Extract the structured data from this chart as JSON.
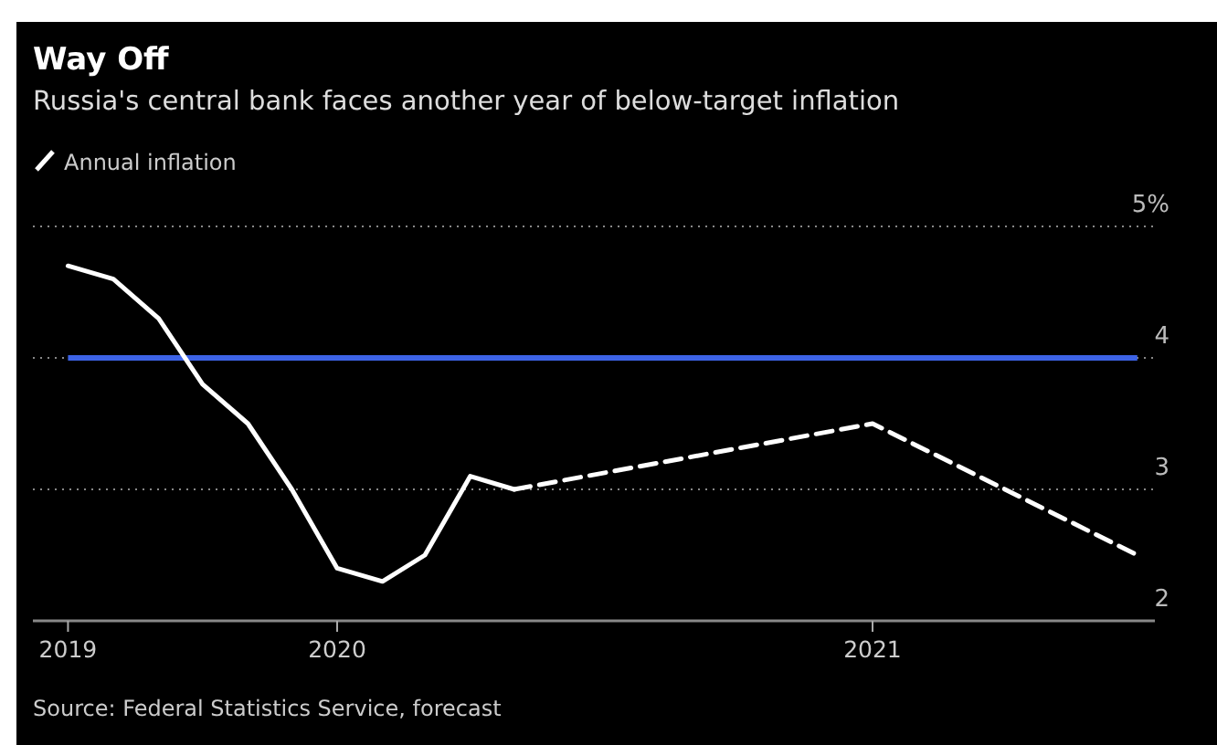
{
  "chart_data": {
    "type": "line",
    "title": "Way Off",
    "subtitle": "Russia's central bank faces another year of below-target inflation",
    "annotations": [
      "Source: Federal Statistics Service, forecast"
    ],
    "series": [
      {
        "name": "Annual inflation",
        "color": "#ffffff",
        "line_style": "solid",
        "x": [
          "2019-07",
          "2019-08",
          "2019-09",
          "2019-10",
          "2019-11",
          "2019-12",
          "2020-01",
          "2020-02",
          "2020-03",
          "2020-04",
          "2020-05"
        ],
        "values": [
          4.7,
          4.6,
          4.3,
          3.8,
          3.5,
          3.0,
          2.4,
          2.3,
          2.5,
          3.1,
          3.0
        ]
      },
      {
        "color": "#ffffff",
        "line_style": "dashed",
        "x": [
          "2020-05",
          "2021-01",
          "2021-07"
        ],
        "values": [
          3.0,
          3.5,
          2.5
        ]
      }
    ],
    "xlim": [
      "2019-06-07",
      "2021-07-13"
    ],
    "xticks": [
      {
        "value": "2019-07",
        "label": "2019"
      },
      {
        "value": "2020-01",
        "label": "2020"
      },
      {
        "value": "2021-01",
        "label": "2021"
      }
    ],
    "ylim": [
      2,
      5
    ],
    "yticks": [
      2,
      3,
      4,
      {
        "value": 5,
        "label": "5%"
      }
    ],
    "ref_lines": [
      {
        "axis": "y",
        "value": 4,
        "label": null,
        "color": "#3d63e6"
      }
    ],
    "grid": "y",
    "legend": "top left",
    "marker": "none"
  }
}
